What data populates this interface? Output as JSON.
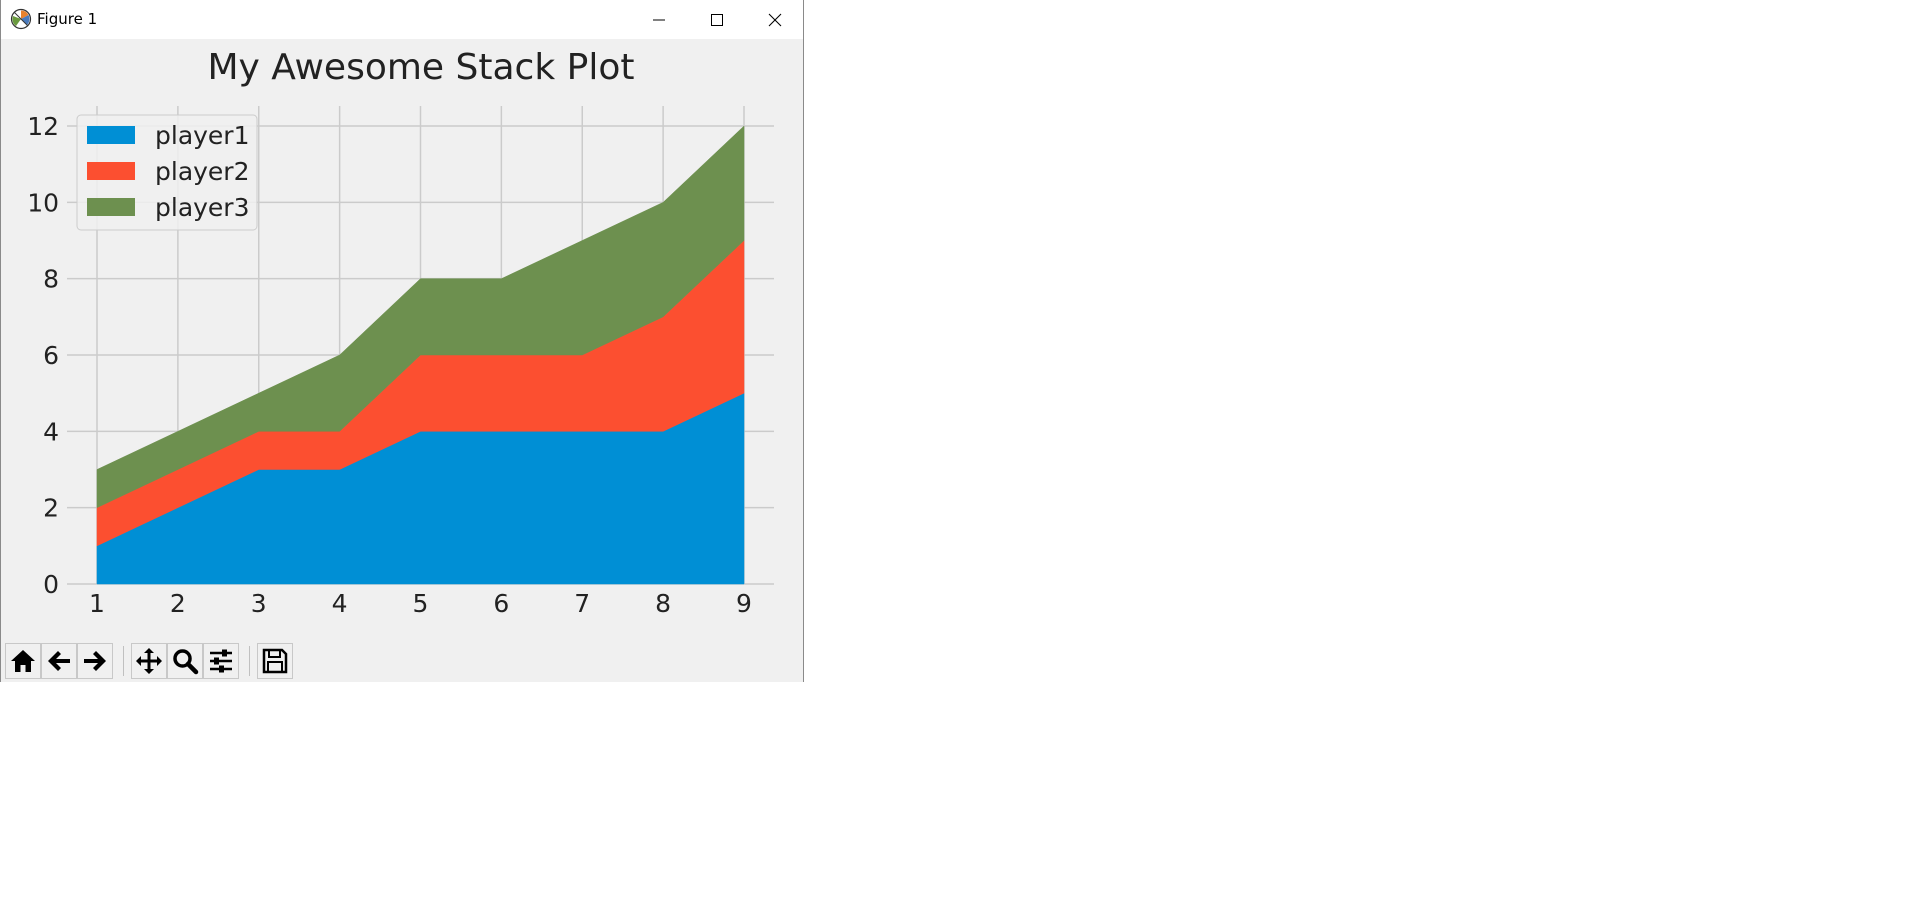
{
  "window": {
    "title": "Figure 1",
    "controls": [
      "minimize-icon",
      "maximize-icon",
      "close-icon"
    ]
  },
  "toolbar": {
    "buttons": [
      "home-icon",
      "back-arrow-icon",
      "forward-arrow-icon",
      "pan-icon",
      "zoom-icon",
      "configure-subplots-icon",
      "save-icon"
    ]
  },
  "chart_data": {
    "type": "area",
    "stacked": true,
    "title": "My Awesome Stack Plot",
    "xlabel": "",
    "ylabel": "",
    "x": [
      1,
      2,
      3,
      4,
      5,
      6,
      7,
      8,
      9
    ],
    "xlim": [
      1,
      9
    ],
    "ylim": [
      0,
      12
    ],
    "xticks": [
      1,
      2,
      3,
      4,
      5,
      6,
      7,
      8,
      9
    ],
    "yticks": [
      0,
      2,
      4,
      6,
      8,
      10,
      12
    ],
    "grid": true,
    "legend_position": "upper-left",
    "series": [
      {
        "name": "player1",
        "color": "#008fd5",
        "values": [
          1,
          2,
          3,
          3,
          4,
          4,
          4,
          4,
          5
        ]
      },
      {
        "name": "player2",
        "color": "#fc4f30",
        "values": [
          1,
          1,
          1,
          1,
          2,
          2,
          2,
          3,
          4
        ]
      },
      {
        "name": "player3",
        "color": "#6d904f",
        "values": [
          1,
          1,
          1,
          2,
          2,
          2,
          3,
          3,
          3
        ]
      }
    ]
  }
}
